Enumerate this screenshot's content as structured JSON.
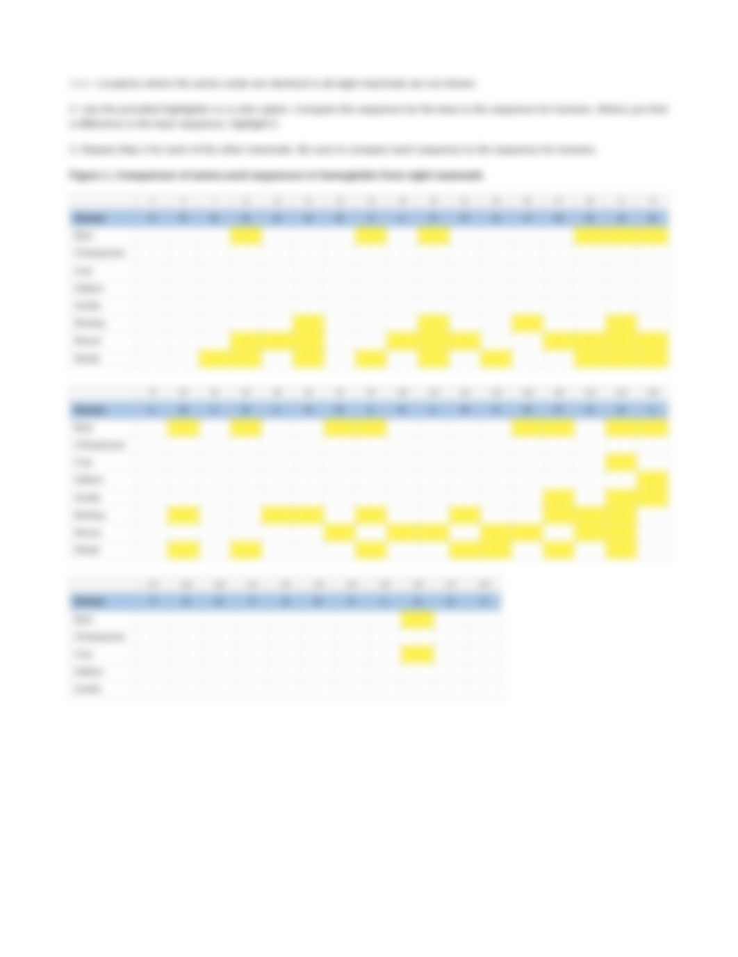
{
  "intro": {
    "note_prefix": "Note:",
    "note_text": "Locations where the amino acids are identical in all eight mammals are not shown.",
    "step2": "2. Use the provided highlighter or a color option. Compare the sequence for the bear to the sequence for humans. Where you find a difference in the bear sequence, highlight it.",
    "step3": "3. Repeat Step 2 for each of the other mammals. Be sure to compare each sequence to the sequence for humans.",
    "figure_label": "Figure 1. Comparison of amino-acid sequences in hemoglobin from eight mammals"
  },
  "colors": {
    "header_band": "#a9c6e6",
    "highlight": "#fff24d",
    "border": "#cccccc",
    "background": "#ffffff",
    "text": "#222222"
  },
  "row_labels": [
    "Human",
    "Bear",
    "Chimpanzee",
    "Cow",
    "Gibbon",
    "Gorilla",
    "Monkey",
    "Mouse",
    "Whale"
  ],
  "tables": [
    {
      "positions": [
        "2",
        "5",
        "7",
        "11",
        "14",
        "21",
        "23",
        "24",
        "34",
        "46",
        "51",
        "53",
        "55",
        "57",
        "59",
        "71",
        "72"
      ],
      "cells": [
        [
          "V",
          "P",
          "E",
          "K",
          "A",
          "A",
          "E",
          "Y",
          "L",
          "F",
          "P",
          "A",
          "V",
          "N",
          "K",
          "A",
          "H"
        ],
        [
          "-",
          "-",
          "-",
          "-",
          "-",
          "-",
          "-",
          "-",
          "-",
          "-",
          "-",
          "-",
          "-",
          "-",
          "-",
          "-",
          "-"
        ],
        [
          "-",
          "-",
          "-",
          "-",
          "-",
          "-",
          "-",
          "-",
          "-",
          "-",
          "-",
          "-",
          "-",
          "-",
          "-",
          "-",
          "-"
        ],
        [
          "-",
          "-",
          "-",
          "-",
          "-",
          "-",
          "-",
          "-",
          "-",
          "-",
          "-",
          "-",
          "-",
          "-",
          "-",
          "-",
          "-"
        ],
        [
          "-",
          "-",
          "-",
          "-",
          "-",
          "-",
          "-",
          "-",
          "-",
          "-",
          "-",
          "-",
          "-",
          "-",
          "-",
          "-",
          "-"
        ],
        [
          "-",
          "-",
          "-",
          "-",
          "-",
          "-",
          "-",
          "-",
          "-",
          "-",
          "-",
          "-",
          "-",
          "-",
          "-",
          "-",
          "-"
        ],
        [
          "-",
          "-",
          "-",
          "-",
          "-",
          "-",
          "-",
          "-",
          "-",
          "-",
          "-",
          "-",
          "-",
          "-",
          "-",
          "-",
          "-"
        ],
        [
          "-",
          "-",
          "-",
          "-",
          "-",
          "-",
          "-",
          "-",
          "-",
          "-",
          "-",
          "-",
          "-",
          "-",
          "-",
          "-",
          "-"
        ],
        [
          "-",
          "-",
          "-",
          "-",
          "-",
          "-",
          "-",
          "-",
          "-",
          "-",
          "-",
          "-",
          "-",
          "-",
          "-",
          "-",
          "-"
        ]
      ],
      "highlights": [
        [],
        [
          3,
          7,
          9,
          14,
          15,
          16
        ],
        [],
        [],
        [],
        [],
        [
          5,
          9,
          12,
          15
        ],
        [
          3,
          4,
          5,
          8,
          9,
          10,
          13,
          14,
          15,
          16
        ],
        [
          2,
          3,
          5,
          7,
          9,
          11,
          14,
          15,
          16
        ]
      ]
    },
    {
      "positions": [
        "78",
        "80",
        "82",
        "85",
        "88",
        "90",
        "92",
        "95",
        "105",
        "113",
        "115",
        "118",
        "128",
        "129",
        "132",
        "134",
        "135"
      ],
      "cells": [
        [
          "L",
          "G",
          "L",
          "K",
          "L",
          "S",
          "E",
          "L",
          "K",
          "L",
          "H",
          "V",
          "H",
          "P",
          "A",
          "A",
          "L"
        ],
        [
          "-",
          "-",
          "-",
          "-",
          "-",
          "-",
          "-",
          "-",
          "-",
          "-",
          "-",
          "-",
          "-",
          "-",
          "-",
          "-",
          "-"
        ],
        [
          "-",
          "-",
          "-",
          "-",
          "-",
          "-",
          "-",
          "-",
          "-",
          "-",
          "-",
          "-",
          "-",
          "-",
          "-",
          "-",
          "-"
        ],
        [
          "-",
          "-",
          "-",
          "-",
          "-",
          "-",
          "-",
          "-",
          "-",
          "-",
          "-",
          "-",
          "-",
          "-",
          "-",
          "-",
          "-"
        ],
        [
          "-",
          "-",
          "-",
          "-",
          "-",
          "-",
          "-",
          "-",
          "-",
          "-",
          "-",
          "-",
          "-",
          "-",
          "-",
          "-",
          "-"
        ],
        [
          "-",
          "-",
          "-",
          "-",
          "-",
          "-",
          "-",
          "-",
          "-",
          "-",
          "-",
          "-",
          "-",
          "-",
          "-",
          "-",
          "-"
        ],
        [
          "-",
          "-",
          "-",
          "-",
          "-",
          "-",
          "-",
          "-",
          "-",
          "-",
          "-",
          "-",
          "-",
          "-",
          "-",
          "-",
          "-"
        ],
        [
          "-",
          "-",
          "-",
          "-",
          "-",
          "-",
          "-",
          "-",
          "-",
          "-",
          "-",
          "-",
          "-",
          "-",
          "-",
          "-",
          "-"
        ],
        [
          "-",
          "-",
          "-",
          "-",
          "-",
          "-",
          "-",
          "-",
          "-",
          "-",
          "-",
          "-",
          "-",
          "-",
          "-",
          "-",
          "-"
        ]
      ],
      "highlights": [
        [],
        [
          1,
          3,
          6,
          7,
          12,
          13,
          15,
          16
        ],
        [],
        [
          15
        ],
        [
          16
        ],
        [
          13,
          15,
          16
        ],
        [
          1,
          4,
          5,
          7,
          10,
          13,
          14,
          15
        ],
        [
          6,
          8,
          9,
          11,
          12,
          14,
          15
        ],
        [
          1,
          3,
          7,
          10,
          11,
          13,
          15
        ]
      ]
    },
    {
      "positions": [
        "137",
        "138",
        "139",
        "141",
        "142",
        "143",
        "144",
        "145",
        "146",
        "147",
        "148"
      ],
      "cells": [
        [
          "T",
          "S",
          "K",
          "Y",
          "A",
          "K",
          "F",
          "L",
          "A",
          "S",
          "V"
        ],
        [
          "-",
          "-",
          "-",
          "-",
          "-",
          "-",
          "-",
          "-",
          "-",
          "-",
          "-"
        ],
        [
          "-",
          "-",
          "-",
          "-",
          "-",
          "-",
          "-",
          "-",
          "-",
          "-",
          "-"
        ],
        [
          "-",
          "-",
          "-",
          "-",
          "-",
          "-",
          "-",
          "-",
          "-",
          "-",
          "-"
        ],
        [
          "-",
          "-",
          "-",
          "-",
          "-",
          "-",
          "-",
          "-",
          "-",
          "-",
          "-"
        ],
        [
          "-",
          "-",
          "-",
          "-",
          "-",
          "-",
          "-",
          "-",
          "-",
          "-",
          "-"
        ]
      ],
      "highlights": [
        [],
        [
          8
        ],
        [],
        [
          8
        ],
        [],
        []
      ],
      "row_count": 6
    }
  ]
}
